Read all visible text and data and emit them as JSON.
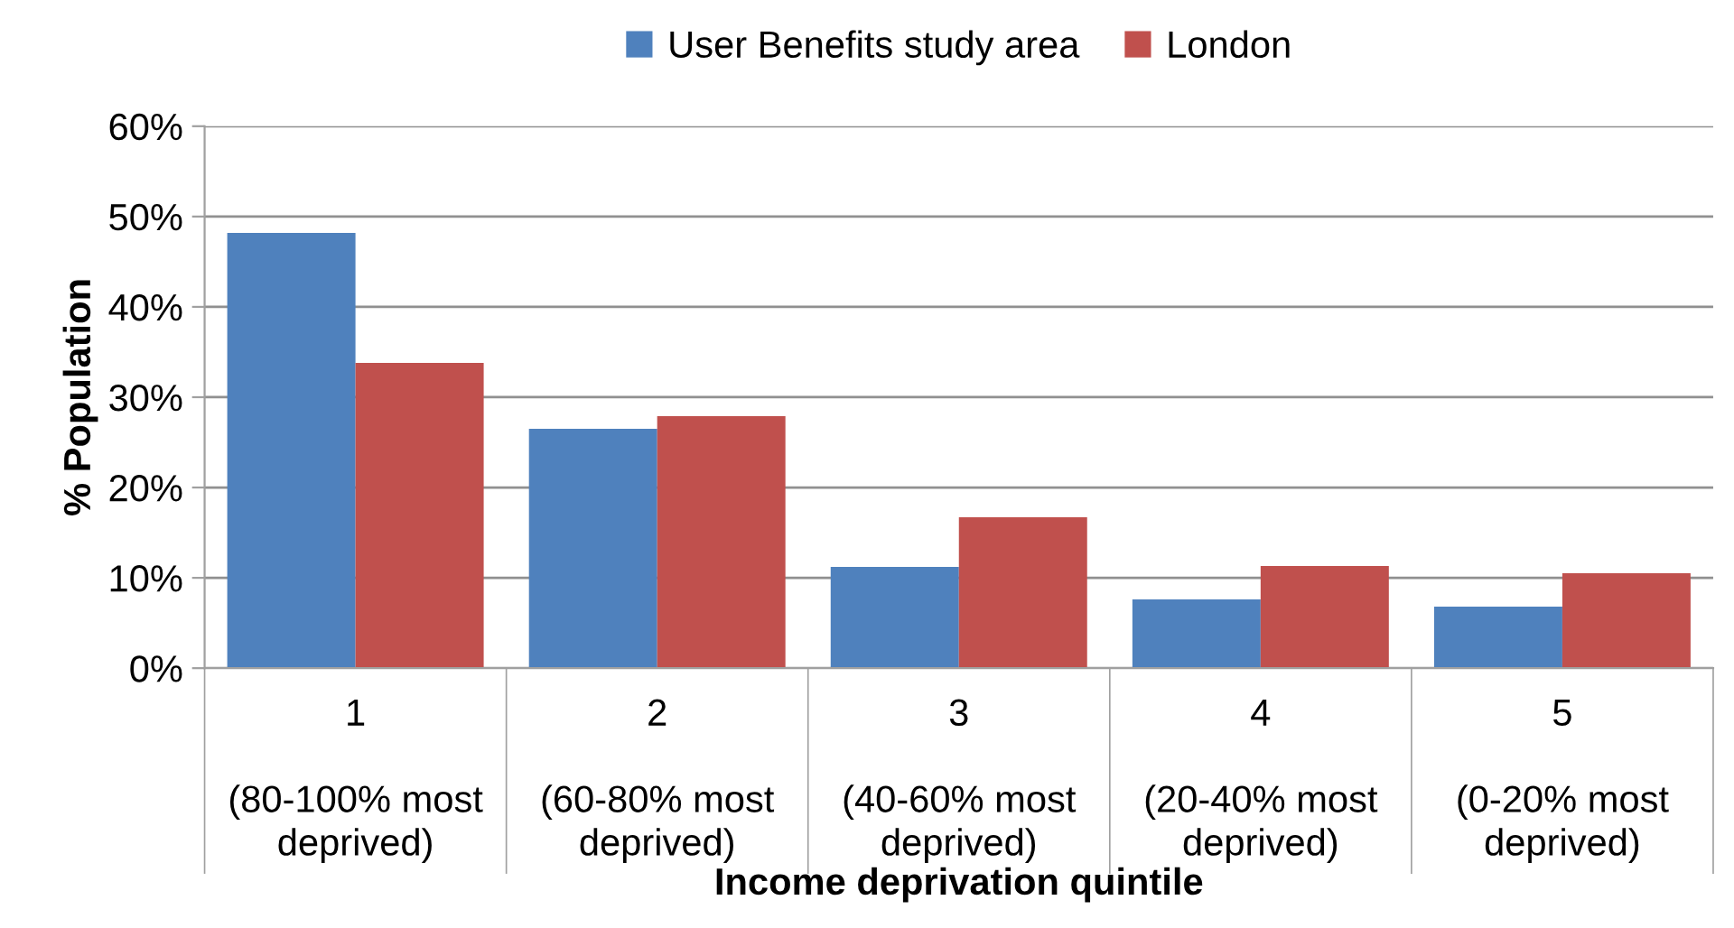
{
  "chart_data": {
    "type": "bar",
    "xlabel": "Income deprivation quintile",
    "ylabel": "% Population",
    "categories": [
      "1\n\n(80-100% most\ndeprived)",
      "2\n\n(60-80% most\ndeprived)",
      "3\n\n(40-60% most\ndeprived)",
      "4\n\n(20-40% most\ndeprived)",
      "5\n\n(0-20% most\ndeprived)"
    ],
    "series": [
      {
        "name": "User Benefits study area",
        "color": "#4f81bd",
        "values": [
          48.2,
          26.5,
          11.2,
          7.6,
          6.8
        ]
      },
      {
        "name": "London",
        "color": "#c0504d",
        "values": [
          33.8,
          27.9,
          16.7,
          11.3,
          10.5
        ]
      }
    ],
    "ylim": [
      0,
      60
    ],
    "yticks": [
      {
        "value": 0,
        "label": "0%"
      },
      {
        "value": 10,
        "label": "10%"
      },
      {
        "value": 20,
        "label": "20%"
      },
      {
        "value": 30,
        "label": "30%"
      },
      {
        "value": 40,
        "label": "40%"
      },
      {
        "value": 50,
        "label": "50%"
      },
      {
        "value": 60,
        "label": "60%"
      }
    ],
    "grid": "y",
    "legend": "top"
  }
}
